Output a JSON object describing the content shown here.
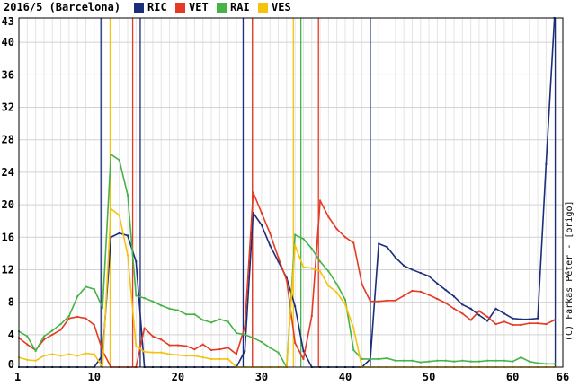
{
  "header": {
    "title": "2016/5 (Barcelona)"
  },
  "credit": "(C) Farkas Péter - [origo]",
  "chart_data": {
    "type": "line",
    "title": "2016/5 (Barcelona)",
    "xlabel": "",
    "ylabel": "",
    "xlim": [
      1,
      66
    ],
    "ylim": [
      0,
      43
    ],
    "x_ticks": [
      1,
      10,
      20,
      30,
      40,
      50,
      60,
      66
    ],
    "y_ticks": [
      0,
      4,
      8,
      12,
      16,
      20,
      24,
      28,
      32,
      36,
      40,
      43
    ],
    "grid": true,
    "legend": "top",
    "series": [
      {
        "name": "RIC",
        "color": "#1c2e7a",
        "values": [
          0,
          0,
          0,
          0,
          0,
          0,
          0,
          0,
          0,
          0,
          1.5,
          16,
          16.5,
          16.2,
          13,
          0,
          0,
          0,
          0,
          0,
          0,
          0,
          0,
          0,
          0,
          0,
          0,
          2,
          19,
          17.5,
          15,
          13,
          11,
          7.5,
          2,
          0,
          0,
          0,
          0,
          0,
          0,
          0,
          1,
          15.2,
          14.8,
          13.5,
          12.5,
          12,
          11.6,
          11.2,
          10.3,
          9.5,
          8.7,
          7.7,
          7.2,
          6.4,
          5.7,
          7.2,
          6.6,
          6,
          5.9,
          5.9,
          6,
          25,
          43
        ]
      },
      {
        "name": "VET",
        "color": "#e53a24",
        "values": [
          3.6,
          2.8,
          2.1,
          3.4,
          4,
          4.6,
          6,
          6.2,
          6,
          5.2,
          2,
          0,
          0,
          0,
          0,
          4.8,
          3.8,
          3.4,
          2.7,
          2.7,
          2.6,
          2.2,
          2.8,
          2.1,
          2.2,
          2.4,
          1.6,
          5,
          21.5,
          19,
          16.5,
          13.5,
          10.7,
          3,
          1,
          6.3,
          20.5,
          18.5,
          17,
          16,
          15.3,
          10.2,
          8.1,
          8.1,
          8.2,
          8.2,
          8.8,
          9.4,
          9.3,
          8.9,
          8.4,
          7.9,
          7.2,
          6.6,
          5.8,
          6.9,
          6.2,
          5.3,
          5.6,
          5.2,
          5.2,
          5.4,
          5.4,
          5.3,
          5.8
        ]
      },
      {
        "name": "RAI",
        "color": "#46b347",
        "values": [
          4.4,
          3.8,
          2,
          3.8,
          4.5,
          5.3,
          6.3,
          8.7,
          9.9,
          9.6,
          7.3,
          26.2,
          25.5,
          21.2,
          8.8,
          8.5,
          8.1,
          7.6,
          7.2,
          7,
          6.5,
          6.5,
          5.8,
          5.5,
          5.9,
          5.6,
          4.2,
          4,
          3.6,
          3.1,
          2.4,
          1.8,
          0,
          16.3,
          15.8,
          14.6,
          13,
          11.8,
          10.2,
          8.3,
          2.1,
          1,
          1,
          1,
          1.1,
          0.8,
          0.8,
          0.8,
          0.6,
          0.7,
          0.8,
          0.8,
          0.7,
          0.8,
          0.7,
          0.7,
          0.8,
          0.8,
          0.8,
          0.7,
          1.2,
          0.7,
          0.5,
          0.4,
          0.4
        ]
      },
      {
        "name": "VES",
        "color": "#f5c20d",
        "values": [
          1.2,
          0.9,
          0.8,
          1.4,
          1.6,
          1.4,
          1.6,
          1.4,
          1.7,
          1.6,
          0,
          19.5,
          18.7,
          13.8,
          2.6,
          1.9,
          1.8,
          1.8,
          1.6,
          1.5,
          1.4,
          1.4,
          1.2,
          1,
          1,
          1,
          0,
          0,
          0,
          0,
          0,
          0,
          0,
          15,
          12.3,
          12.2,
          11.8,
          10,
          9.2,
          7.7,
          4.8,
          0,
          0,
          0,
          0,
          0,
          0,
          0,
          0,
          0,
          0,
          0,
          0,
          0,
          0,
          0,
          0,
          0,
          0,
          0,
          0,
          0,
          0,
          0,
          0
        ]
      }
    ],
    "vertical_markers": [
      {
        "series": "RIC",
        "x": [
          10.8,
          15.5,
          27.8,
          43.0,
          65.1
        ]
      },
      {
        "series": "VET",
        "x": [
          14.6,
          28.9,
          36.8
        ]
      },
      {
        "series": "RAI",
        "x": [
          34.7
        ]
      },
      {
        "series": "VES",
        "x": [
          11.9,
          33.8
        ]
      }
    ]
  }
}
